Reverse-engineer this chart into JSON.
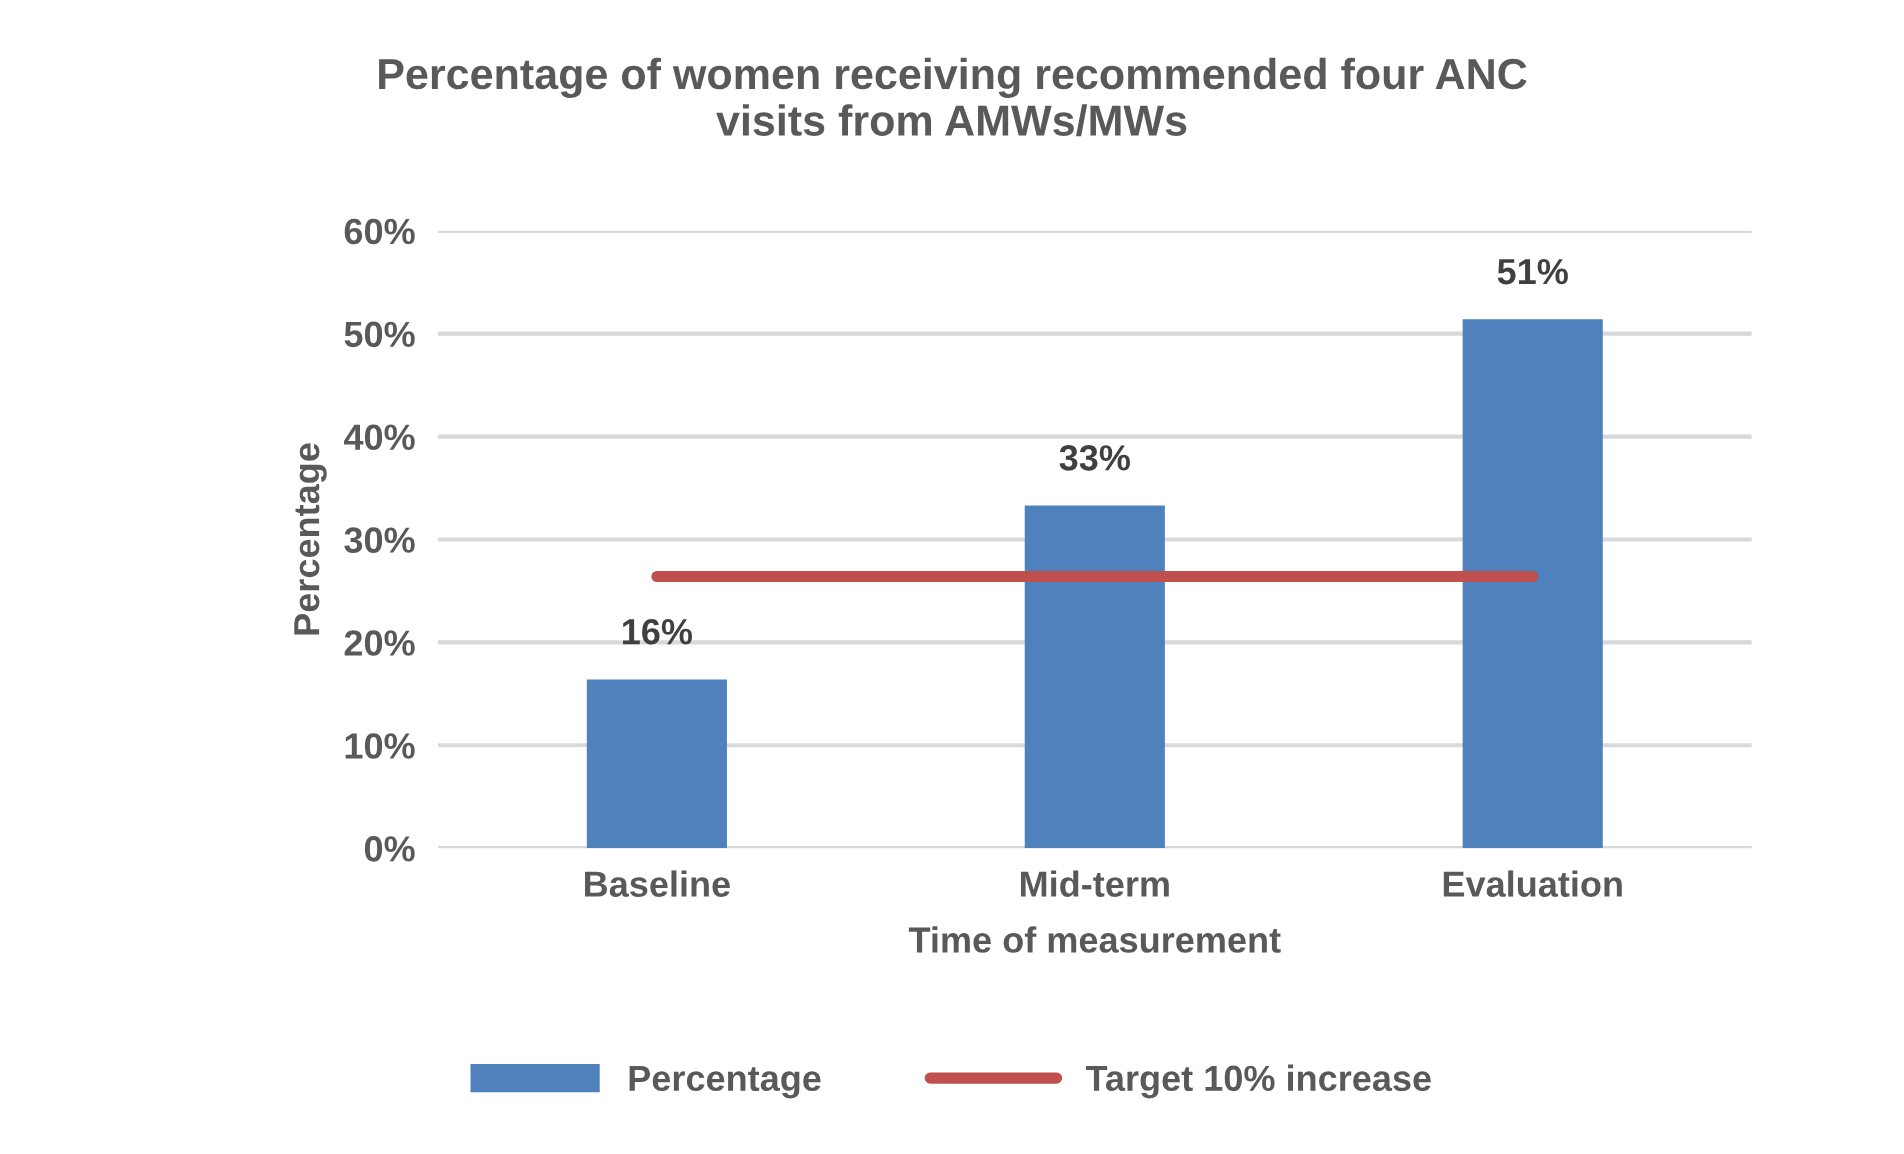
{
  "chart_data": {
    "type": "bar",
    "title": "Percentage of women receiving recommended four ANC\nvisits from AMWs/MWs",
    "xlabel": "Time of measurement",
    "ylabel": "Percentage",
    "categories": [
      "Baseline",
      "Mid-term",
      "Evaluation"
    ],
    "series": [
      {
        "name": "Percentage",
        "color": "#4f81bd",
        "values": [
          16.4,
          33.3,
          51.4
        ],
        "value_labels": [
          "16%",
          "33%",
          "51%"
        ]
      },
      {
        "name": "Target 10% increase",
        "type": "line",
        "color": "#c0504d",
        "values": [
          26.4,
          26.4,
          26.4
        ]
      }
    ],
    "ylim": [
      0,
      60
    ],
    "yticks": [
      {
        "value": 0,
        "label": "0%"
      },
      {
        "value": 10,
        "label": "10%"
      },
      {
        "value": 20,
        "label": "20%"
      },
      {
        "value": 30,
        "label": "30%"
      },
      {
        "value": 40,
        "label": "40%"
      },
      {
        "value": 50,
        "label": "50%"
      },
      {
        "value": 60,
        "label": "60%"
      }
    ],
    "grid": "y",
    "legend": "bottom"
  }
}
